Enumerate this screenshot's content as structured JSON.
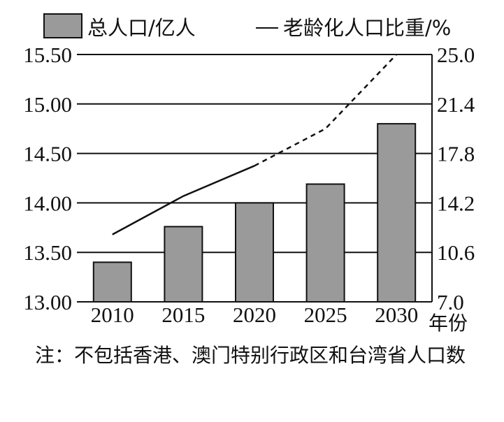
{
  "chart_data": {
    "type": "bar+line",
    "categories": [
      "2010",
      "2015",
      "2020",
      "2025",
      "2030"
    ],
    "x_unit": "年份",
    "series": [
      {
        "name": "总人口/亿人",
        "kind": "bar",
        "axis": "left",
        "values": [
          13.4,
          13.76,
          14.0,
          14.19,
          14.8
        ],
        "color": "#9a9a9a"
      },
      {
        "name": "老龄化人口比重/%",
        "kind": "line",
        "axis": "right",
        "values": [
          11.9,
          14.7,
          16.9,
          19.6,
          25.0
        ],
        "projected_from": "2020",
        "color": "#111111"
      }
    ],
    "left_axis": {
      "ylim": [
        13.0,
        15.5
      ],
      "ticks": [
        "13.00",
        "13.50",
        "14.00",
        "14.50",
        "15.00",
        "15.50"
      ]
    },
    "right_axis": {
      "ylim": [
        7.0,
        25.0
      ],
      "ticks": [
        "7.0",
        "10.6",
        "14.2",
        "17.8",
        "21.4",
        "25.0"
      ]
    },
    "grid": true,
    "legend": "top"
  },
  "note": {
    "prefix": "注：",
    "text": "不包括香港、澳门特别行政区和台湾省人口数"
  }
}
